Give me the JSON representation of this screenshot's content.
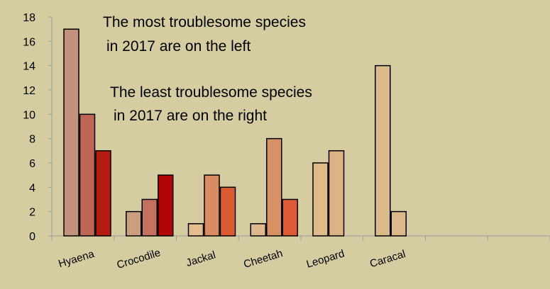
{
  "chart_data": {
    "type": "bar",
    "title": "",
    "xlabel": "",
    "ylabel": "",
    "ylim": [
      0,
      18
    ],
    "yticks": [
      0,
      2,
      4,
      6,
      8,
      10,
      12,
      14,
      16,
      18
    ],
    "grid": false,
    "legend": "none",
    "categories": [
      "Hyaena",
      "Crocodile",
      "Jackal",
      "Cheetah",
      "Leopard",
      "Caracal",
      "",
      ""
    ],
    "bars": [
      [
        {
          "value": 17,
          "color": "#c4917c"
        },
        {
          "value": 10,
          "color": "#be6653"
        },
        {
          "value": 7,
          "color": "#b41b11"
        }
      ],
      [
        {
          "value": 2,
          "color": "#cc9e80"
        },
        {
          "value": 3,
          "color": "#c4725f"
        },
        {
          "value": 5,
          "color": "#b30505"
        }
      ],
      [
        {
          "value": 1,
          "color": "#e4bd8f"
        },
        {
          "value": 5,
          "color": "#d98c63"
        },
        {
          "value": 4,
          "color": "#dc5a32"
        }
      ],
      [
        {
          "value": 1,
          "color": "#e0b88e"
        },
        {
          "value": 8,
          "color": "#d89065"
        },
        {
          "value": 3,
          "color": "#de5935"
        }
      ],
      [
        {
          "value": 6,
          "color": "#dfbb8a"
        },
        {
          "value": 7,
          "color": "#ddb386"
        }
      ],
      [
        {
          "value": 14,
          "color": "#dcbb8a"
        },
        {
          "value": 2,
          "color": "#dcb98a"
        }
      ],
      [],
      []
    ],
    "annotations": [
      [
        "The most troublesome species",
        "in 2017 are on the left"
      ],
      [
        "The least troublesome species",
        "in 2017 are on the right"
      ]
    ]
  }
}
